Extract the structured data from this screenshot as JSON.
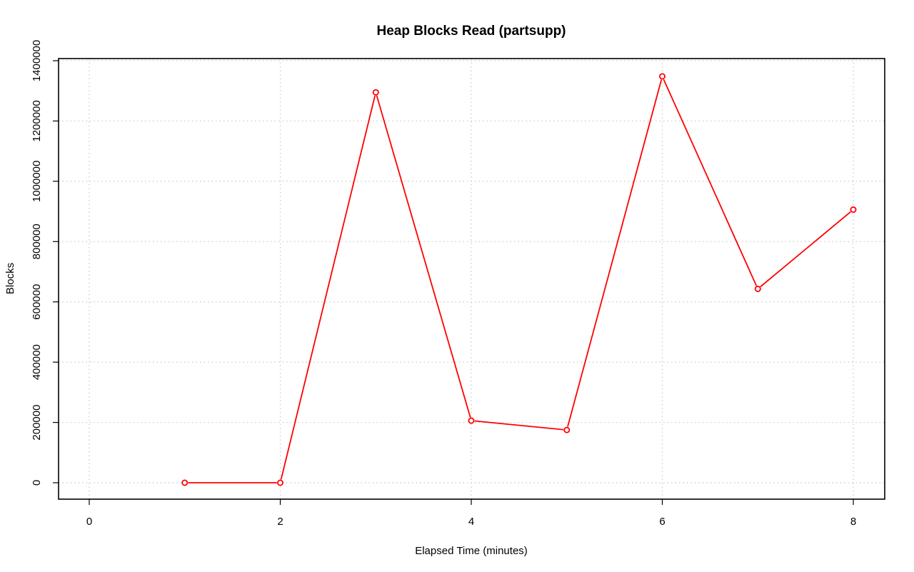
{
  "chart_data": {
    "type": "line",
    "title": "Heap Blocks Read (partsupp)",
    "xlabel": "Elapsed Time (minutes)",
    "ylabel": "Blocks",
    "xlim": [
      0,
      8
    ],
    "ylim": [
      0,
      1400000
    ],
    "x_ticks": [
      0,
      2,
      4,
      6,
      8
    ],
    "y_ticks": [
      0,
      200000,
      400000,
      600000,
      800000,
      1000000,
      1200000,
      1400000
    ],
    "x_tick_labels": [
      "0",
      "2",
      "4",
      "6",
      "8"
    ],
    "y_tick_labels": [
      "0",
      "200000",
      "400000",
      "600000",
      "800000",
      "1000000",
      "1200000",
      "1400000"
    ],
    "grid": true,
    "series": [
      {
        "color": "#ff0000",
        "marker": "open-circle",
        "x": [
          1,
          2,
          3,
          4,
          5,
          6,
          7,
          8
        ],
        "y": [
          0,
          0,
          1295000,
          206000,
          175000,
          1348000,
          643000,
          906000
        ]
      }
    ]
  }
}
